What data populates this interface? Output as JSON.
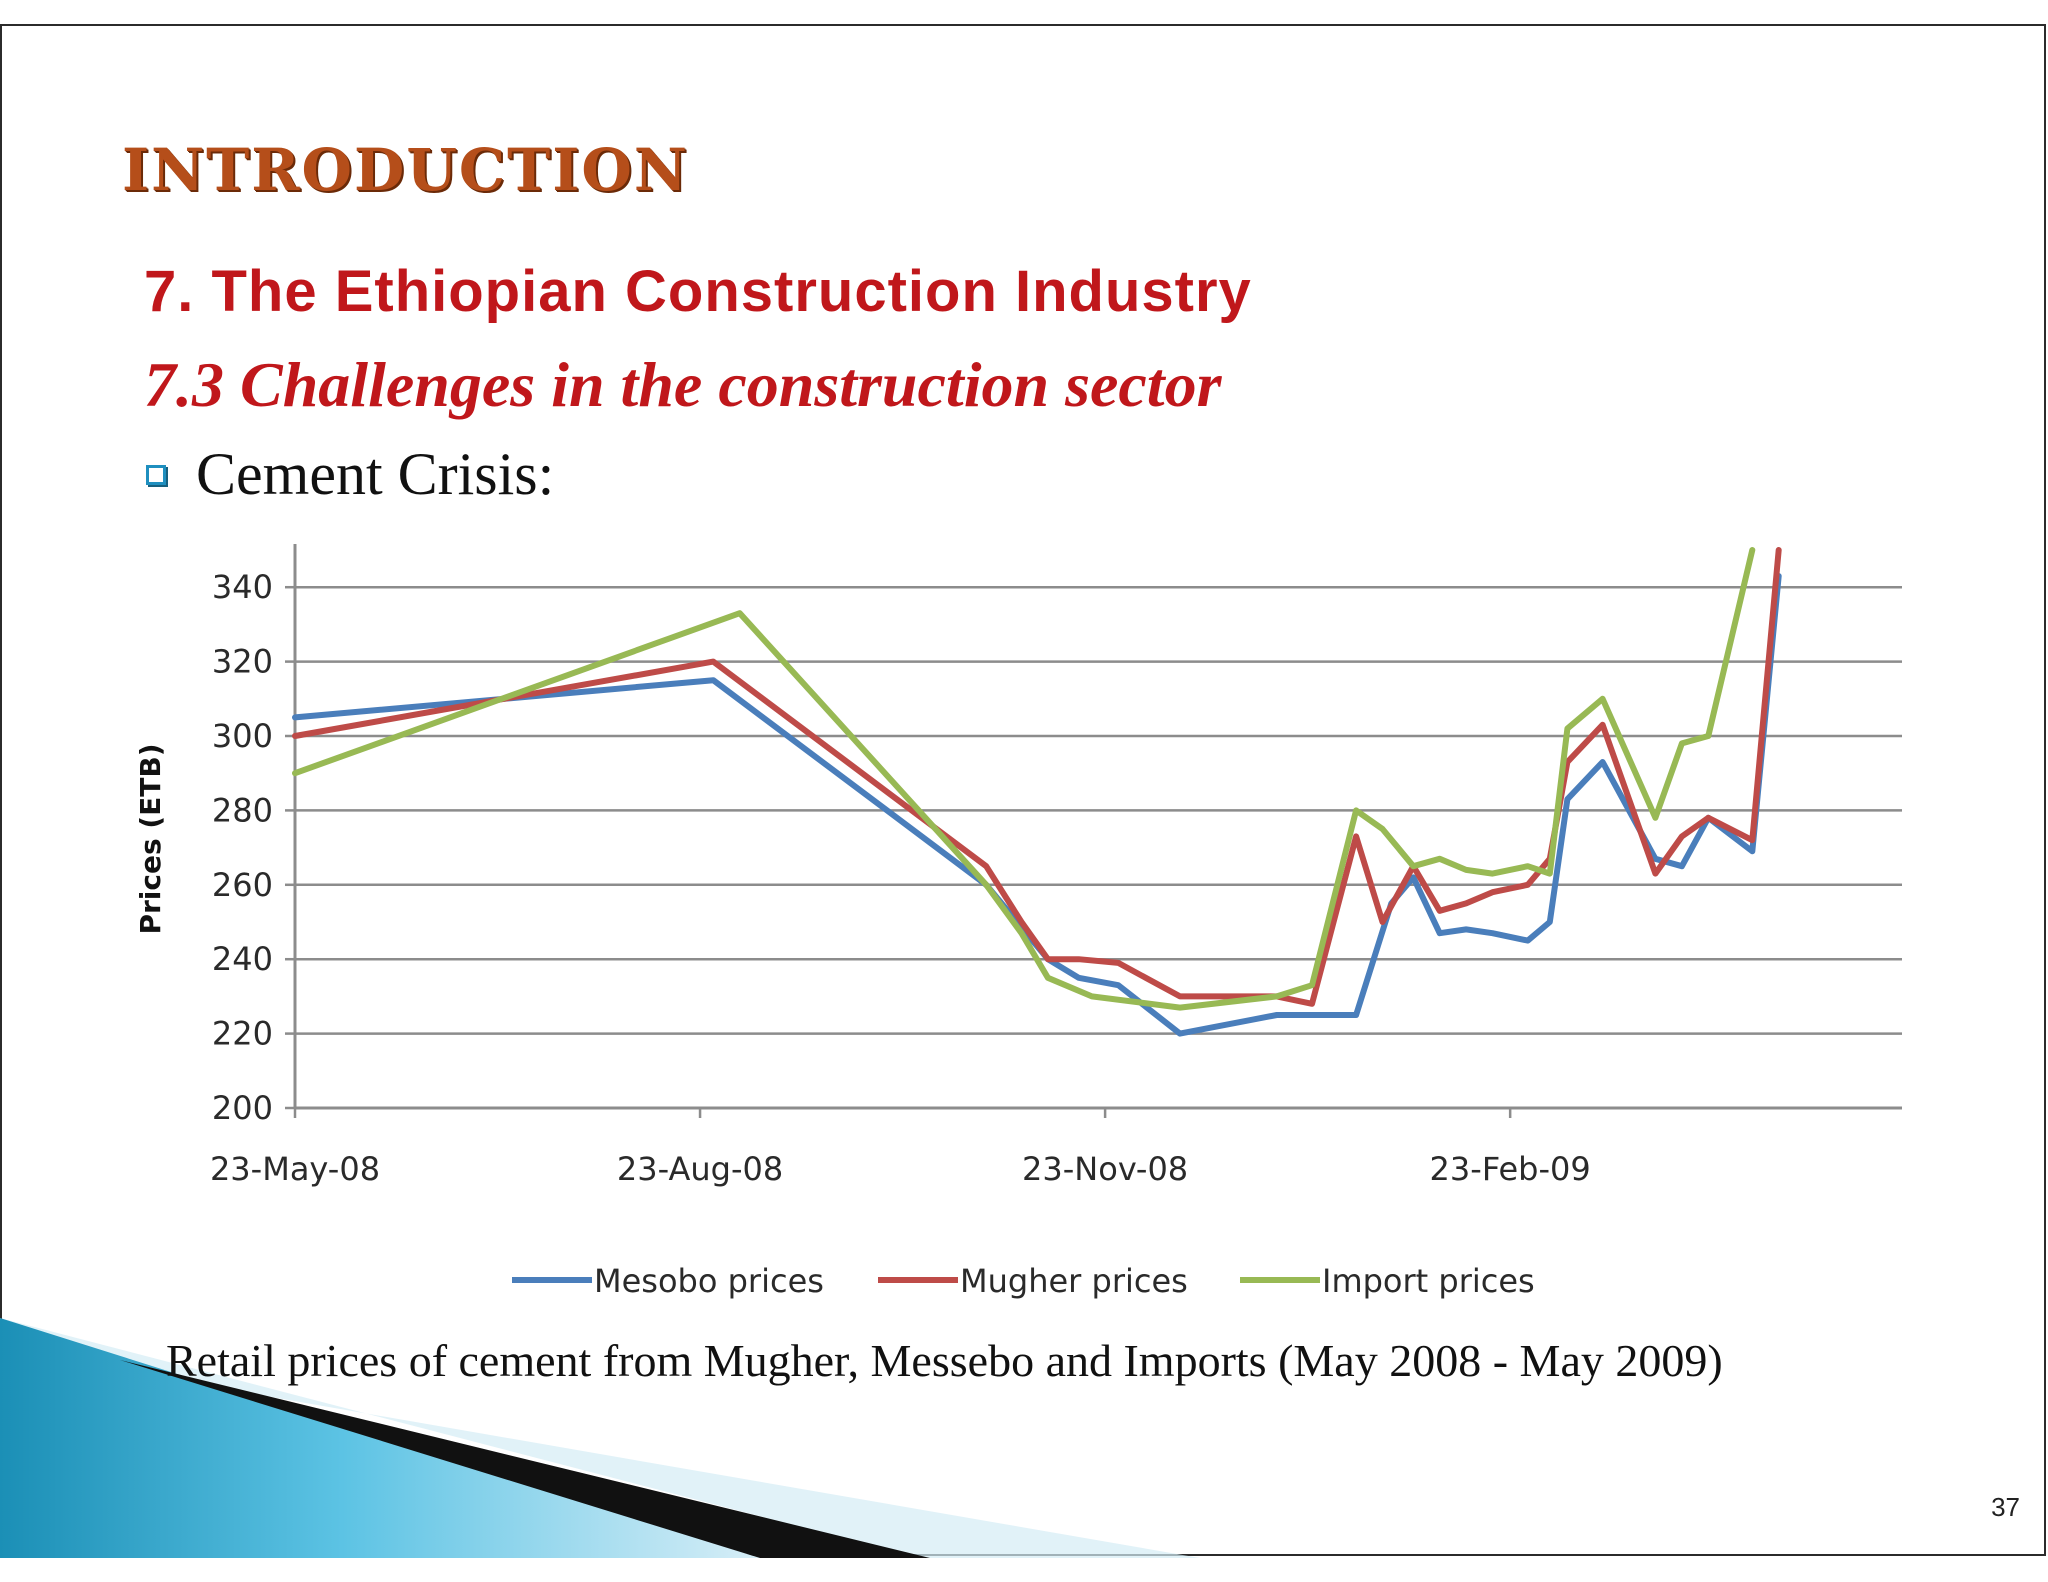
{
  "slide": {
    "heading": "INTRODUCTION",
    "subtitle": "7. The Ethiopian Construction Industry",
    "subsubtitle": "7.3 Challenges in the construction sector",
    "bullet": "Cement Crisis:",
    "caption": "Retail prices of cement from Mugher, Messebo and Imports (May 2008 - May 2009)",
    "page_number": "37",
    "bullet_icon": "hollow-square-bullet-icon"
  },
  "chart_data": {
    "type": "line",
    "title": "",
    "xlabel": "",
    "ylabel": "Prices (ETB)",
    "ylim": [
      200,
      350
    ],
    "yticks": [
      200,
      220,
      240,
      260,
      280,
      300,
      320,
      340
    ],
    "xlim": [
      "2008-05-23",
      "2009-05-23"
    ],
    "xticks": [
      "23-May-08",
      "23-Aug-08",
      "23-Nov-08",
      "23-Feb-09"
    ],
    "grid": true,
    "legend": "bottom",
    "series": [
      {
        "name": "Mesobo prices",
        "color": "#4a7ebb",
        "points": [
          [
            "2008-05-23",
            305
          ],
          [
            "2008-08-26",
            315
          ],
          [
            "2008-10-27",
            260
          ],
          [
            "2008-11-10",
            240
          ],
          [
            "2008-11-17",
            235
          ],
          [
            "2008-11-26",
            233
          ],
          [
            "2008-12-10",
            220
          ],
          [
            "2009-01-01",
            225
          ],
          [
            "2009-01-09",
            225
          ],
          [
            "2009-01-19",
            225
          ],
          [
            "2009-01-27",
            255
          ],
          [
            "2009-02-01",
            262
          ],
          [
            "2009-02-07",
            247
          ],
          [
            "2009-02-13",
            248
          ],
          [
            "2009-02-19",
            247
          ],
          [
            "2009-02-27",
            245
          ],
          [
            "2009-03-04",
            250
          ],
          [
            "2009-03-08",
            283
          ],
          [
            "2009-03-16",
            293
          ],
          [
            "2009-03-28",
            267
          ],
          [
            "2009-04-03",
            265
          ],
          [
            "2009-04-09",
            278
          ],
          [
            "2009-04-19",
            269
          ],
          [
            "2009-04-25",
            343
          ]
        ]
      },
      {
        "name": "Mugher prices",
        "color": "#be4b48",
        "points": [
          [
            "2008-05-23",
            300
          ],
          [
            "2008-08-26",
            320
          ],
          [
            "2008-10-27",
            265
          ],
          [
            "2008-11-04",
            250
          ],
          [
            "2008-11-10",
            240
          ],
          [
            "2008-11-17",
            240
          ],
          [
            "2008-11-26",
            239
          ],
          [
            "2008-12-10",
            230
          ],
          [
            "2009-01-01",
            230
          ],
          [
            "2009-01-09",
            228
          ],
          [
            "2009-01-19",
            273
          ],
          [
            "2009-01-25",
            250
          ],
          [
            "2009-02-01",
            265
          ],
          [
            "2009-02-07",
            253
          ],
          [
            "2009-02-13",
            255
          ],
          [
            "2009-02-19",
            258
          ],
          [
            "2009-02-27",
            260
          ],
          [
            "2009-03-04",
            267
          ],
          [
            "2009-03-08",
            293
          ],
          [
            "2009-03-16",
            303
          ],
          [
            "2009-03-28",
            263
          ],
          [
            "2009-04-03",
            273
          ],
          [
            "2009-04-09",
            278
          ],
          [
            "2009-04-19",
            272
          ],
          [
            "2009-04-25",
            350
          ]
        ]
      },
      {
        "name": "Import prices",
        "color": "#98b954",
        "points": [
          [
            "2008-05-23",
            290
          ],
          [
            "2008-09-01",
            333
          ],
          [
            "2008-10-27",
            260
          ],
          [
            "2008-11-04",
            247
          ],
          [
            "2008-11-10",
            235
          ],
          [
            "2008-11-20",
            230
          ],
          [
            "2008-12-10",
            227
          ],
          [
            "2009-01-01",
            230
          ],
          [
            "2009-01-09",
            233
          ],
          [
            "2009-01-19",
            280
          ],
          [
            "2009-01-25",
            275
          ],
          [
            "2009-02-01",
            265
          ],
          [
            "2009-02-07",
            267
          ],
          [
            "2009-02-13",
            264
          ],
          [
            "2009-02-19",
            263
          ],
          [
            "2009-02-27",
            265
          ],
          [
            "2009-03-04",
            263
          ],
          [
            "2009-03-08",
            302
          ],
          [
            "2009-03-16",
            310
          ],
          [
            "2009-03-28",
            278
          ],
          [
            "2009-04-03",
            298
          ],
          [
            "2009-04-09",
            300
          ],
          [
            "2009-04-19",
            350
          ]
        ]
      }
    ]
  }
}
